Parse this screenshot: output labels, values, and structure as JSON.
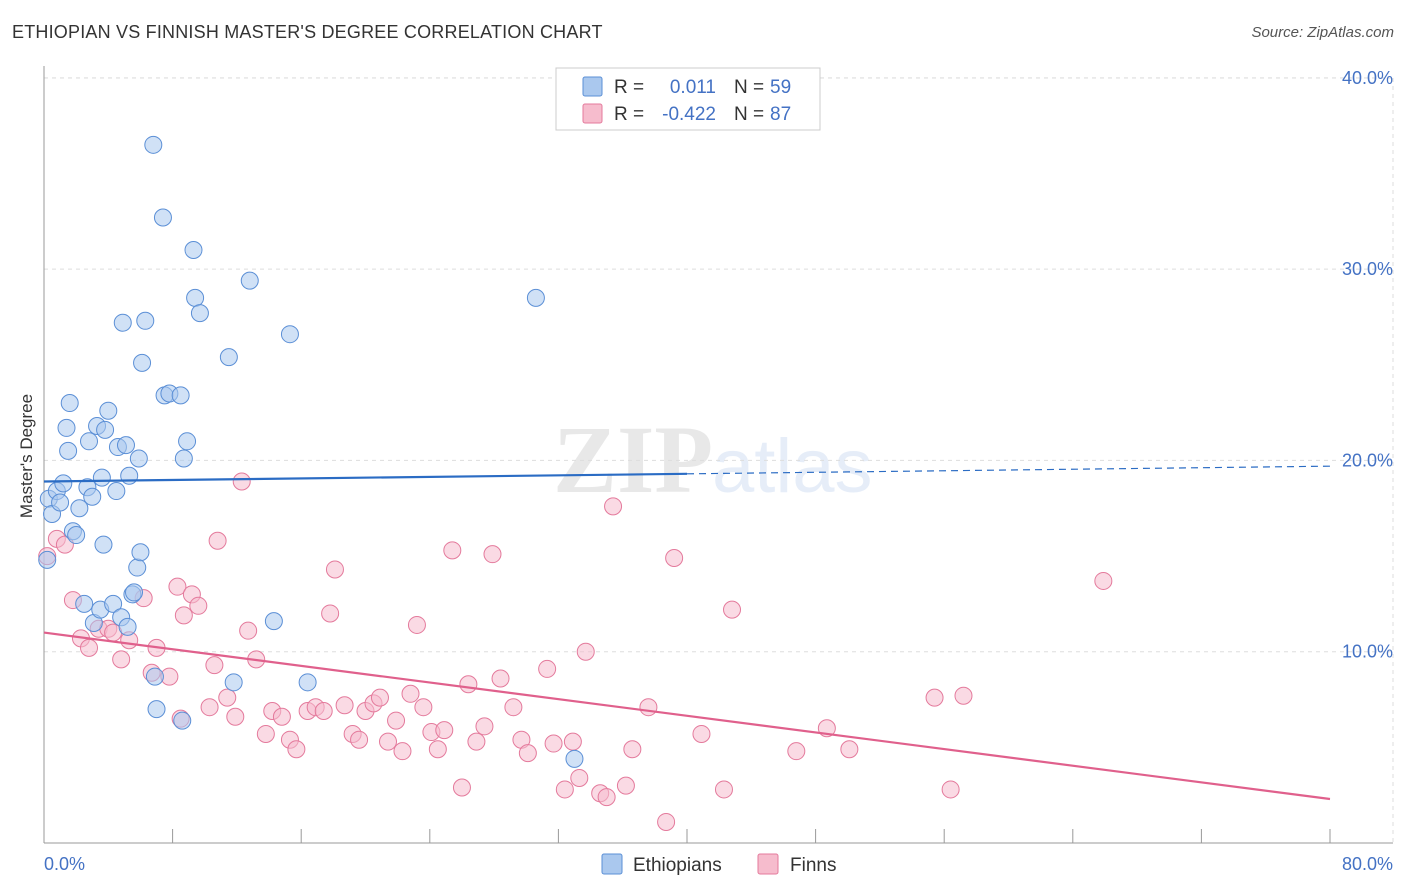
{
  "title": "ETHIOPIAN VS FINNISH MASTER'S DEGREE CORRELATION CHART",
  "source": "Source: ZipAtlas.com",
  "watermark": {
    "zip": "ZIP",
    "atlas": "atlas"
  },
  "colors": {
    "ethiopians_fill": "#aac8ee",
    "ethiopians_stroke": "#5b8fd6",
    "ethiopians_line": "#2b6cc4",
    "finns_fill": "#f6bccd",
    "finns_stroke": "#e47a9c",
    "finns_line": "#e0608c",
    "label_blue": "#4472c4",
    "grid": "#dddddd"
  },
  "legend_top": {
    "rows": [
      {
        "r_label": "R =",
        "r_value": "0.011",
        "n_label": "N =",
        "n_value": "59"
      },
      {
        "r_label": "R =",
        "r_value": "-0.422",
        "n_label": "N =",
        "n_value": "87"
      }
    ]
  },
  "legend_bottom": {
    "items": [
      "Ethiopians",
      "Finns"
    ]
  },
  "chart_data": {
    "type": "scatter",
    "title": "ETHIOPIAN VS FINNISH MASTER'S DEGREE CORRELATION CHART",
    "xlabel": "",
    "ylabel": "Master's Degree",
    "xlim": [
      0,
      80
    ],
    "ylim": [
      0,
      42
    ],
    "x_tick_labels": [
      "0.0%",
      "80.0%"
    ],
    "y_ticks": [
      10,
      20,
      30,
      40
    ],
    "y_tick_labels": [
      "10.0%",
      "20.0%",
      "30.0%",
      "40.0%"
    ],
    "grid": true,
    "legend_position": "top-center",
    "series": [
      {
        "name": "Ethiopians",
        "r": 0.011,
        "n": 59,
        "trend": {
          "x0": 0,
          "y0": 18.9,
          "x1": 40,
          "y1": 19.3,
          "x_dash_end": 80,
          "y_dash_end": 19.7
        },
        "points": [
          [
            0.3,
            18.0
          ],
          [
            0.5,
            17.2
          ],
          [
            0.8,
            18.4
          ],
          [
            1.0,
            17.8
          ],
          [
            1.2,
            18.8
          ],
          [
            1.4,
            21.7
          ],
          [
            1.5,
            20.5
          ],
          [
            1.6,
            23.0
          ],
          [
            1.8,
            16.3
          ],
          [
            2.0,
            16.1
          ],
          [
            2.2,
            17.5
          ],
          [
            2.5,
            12.5
          ],
          [
            2.7,
            18.6
          ],
          [
            2.8,
            21.0
          ],
          [
            3.0,
            18.1
          ],
          [
            3.1,
            11.5
          ],
          [
            3.3,
            21.8
          ],
          [
            3.5,
            12.2
          ],
          [
            3.6,
            19.1
          ],
          [
            3.7,
            15.6
          ],
          [
            3.8,
            21.6
          ],
          [
            4.0,
            22.6
          ],
          [
            4.3,
            12.5
          ],
          [
            4.5,
            18.4
          ],
          [
            4.6,
            20.7
          ],
          [
            4.8,
            11.8
          ],
          [
            4.9,
            27.2
          ],
          [
            5.1,
            20.8
          ],
          [
            5.2,
            11.3
          ],
          [
            5.3,
            19.2
          ],
          [
            5.5,
            13.0
          ],
          [
            5.6,
            13.1
          ],
          [
            5.8,
            14.4
          ],
          [
            5.9,
            20.1
          ],
          [
            6.0,
            15.2
          ],
          [
            6.1,
            25.1
          ],
          [
            6.3,
            27.3
          ],
          [
            6.8,
            36.5
          ],
          [
            6.9,
            8.7
          ],
          [
            7.0,
            7.0
          ],
          [
            7.4,
            32.7
          ],
          [
            7.5,
            23.4
          ],
          [
            7.8,
            23.5
          ],
          [
            8.5,
            23.4
          ],
          [
            8.6,
            6.4
          ],
          [
            8.7,
            20.1
          ],
          [
            8.9,
            21.0
          ],
          [
            9.3,
            31.0
          ],
          [
            9.4,
            28.5
          ],
          [
            9.7,
            27.7
          ],
          [
            11.5,
            25.4
          ],
          [
            11.8,
            8.4
          ],
          [
            12.8,
            29.4
          ],
          [
            14.3,
            11.6
          ],
          [
            15.3,
            26.6
          ],
          [
            16.4,
            8.4
          ],
          [
            30.6,
            28.5
          ],
          [
            33.0,
            4.4
          ],
          [
            0.2,
            14.8
          ]
        ]
      },
      {
        "name": "Finns",
        "r": -0.422,
        "n": 87,
        "trend": {
          "x0": 0,
          "y0": 11.0,
          "x1": 80,
          "y1": 2.3
        },
        "points": [
          [
            0.2,
            15.0
          ],
          [
            0.8,
            15.9
          ],
          [
            1.3,
            15.6
          ],
          [
            1.8,
            12.7
          ],
          [
            2.3,
            10.7
          ],
          [
            2.8,
            10.2
          ],
          [
            3.4,
            11.2
          ],
          [
            4.0,
            11.2
          ],
          [
            4.3,
            11.0
          ],
          [
            4.8,
            9.6
          ],
          [
            5.3,
            10.6
          ],
          [
            6.2,
            12.8
          ],
          [
            6.7,
            8.9
          ],
          [
            7.0,
            10.2
          ],
          [
            7.8,
            8.7
          ],
          [
            8.3,
            13.4
          ],
          [
            8.7,
            11.9
          ],
          [
            9.2,
            13.0
          ],
          [
            9.6,
            12.4
          ],
          [
            10.3,
            7.1
          ],
          [
            10.8,
            15.8
          ],
          [
            11.4,
            7.6
          ],
          [
            11.9,
            6.6
          ],
          [
            12.3,
            18.9
          ],
          [
            12.7,
            11.1
          ],
          [
            13.2,
            9.6
          ],
          [
            13.8,
            5.7
          ],
          [
            14.2,
            6.9
          ],
          [
            14.8,
            6.6
          ],
          [
            15.3,
            5.4
          ],
          [
            15.7,
            4.9
          ],
          [
            16.4,
            6.9
          ],
          [
            16.9,
            7.1
          ],
          [
            17.4,
            6.9
          ],
          [
            17.8,
            12.0
          ],
          [
            18.1,
            14.3
          ],
          [
            18.7,
            7.2
          ],
          [
            19.2,
            5.7
          ],
          [
            19.6,
            5.4
          ],
          [
            20.0,
            6.9
          ],
          [
            20.5,
            7.3
          ],
          [
            20.9,
            7.6
          ],
          [
            21.4,
            5.3
          ],
          [
            21.9,
            6.4
          ],
          [
            22.3,
            4.8
          ],
          [
            22.8,
            7.8
          ],
          [
            23.2,
            11.4
          ],
          [
            23.6,
            7.1
          ],
          [
            24.1,
            5.8
          ],
          [
            24.5,
            4.9
          ],
          [
            24.9,
            5.9
          ],
          [
            25.4,
            15.3
          ],
          [
            26.0,
            2.9
          ],
          [
            26.4,
            8.3
          ],
          [
            26.9,
            5.3
          ],
          [
            27.4,
            6.1
          ],
          [
            27.9,
            15.1
          ],
          [
            28.4,
            8.6
          ],
          [
            29.2,
            7.1
          ],
          [
            29.7,
            5.4
          ],
          [
            30.1,
            4.7
          ],
          [
            31.3,
            9.1
          ],
          [
            31.7,
            5.2
          ],
          [
            32.4,
            2.8
          ],
          [
            32.9,
            5.3
          ],
          [
            33.3,
            3.4
          ],
          [
            33.7,
            10.0
          ],
          [
            34.6,
            2.6
          ],
          [
            35.0,
            2.4
          ],
          [
            35.4,
            17.6
          ],
          [
            36.2,
            3.0
          ],
          [
            36.6,
            4.9
          ],
          [
            37.6,
            7.1
          ],
          [
            38.7,
            1.1
          ],
          [
            39.2,
            14.9
          ],
          [
            40.9,
            5.7
          ],
          [
            42.3,
            2.8
          ],
          [
            42.8,
            12.2
          ],
          [
            46.8,
            4.8
          ],
          [
            48.7,
            6.0
          ],
          [
            50.1,
            4.9
          ],
          [
            55.4,
            7.6
          ],
          [
            56.4,
            2.8
          ],
          [
            57.2,
            7.7
          ],
          [
            65.9,
            13.7
          ],
          [
            8.5,
            6.5
          ],
          [
            10.6,
            9.3
          ]
        ]
      }
    ]
  }
}
